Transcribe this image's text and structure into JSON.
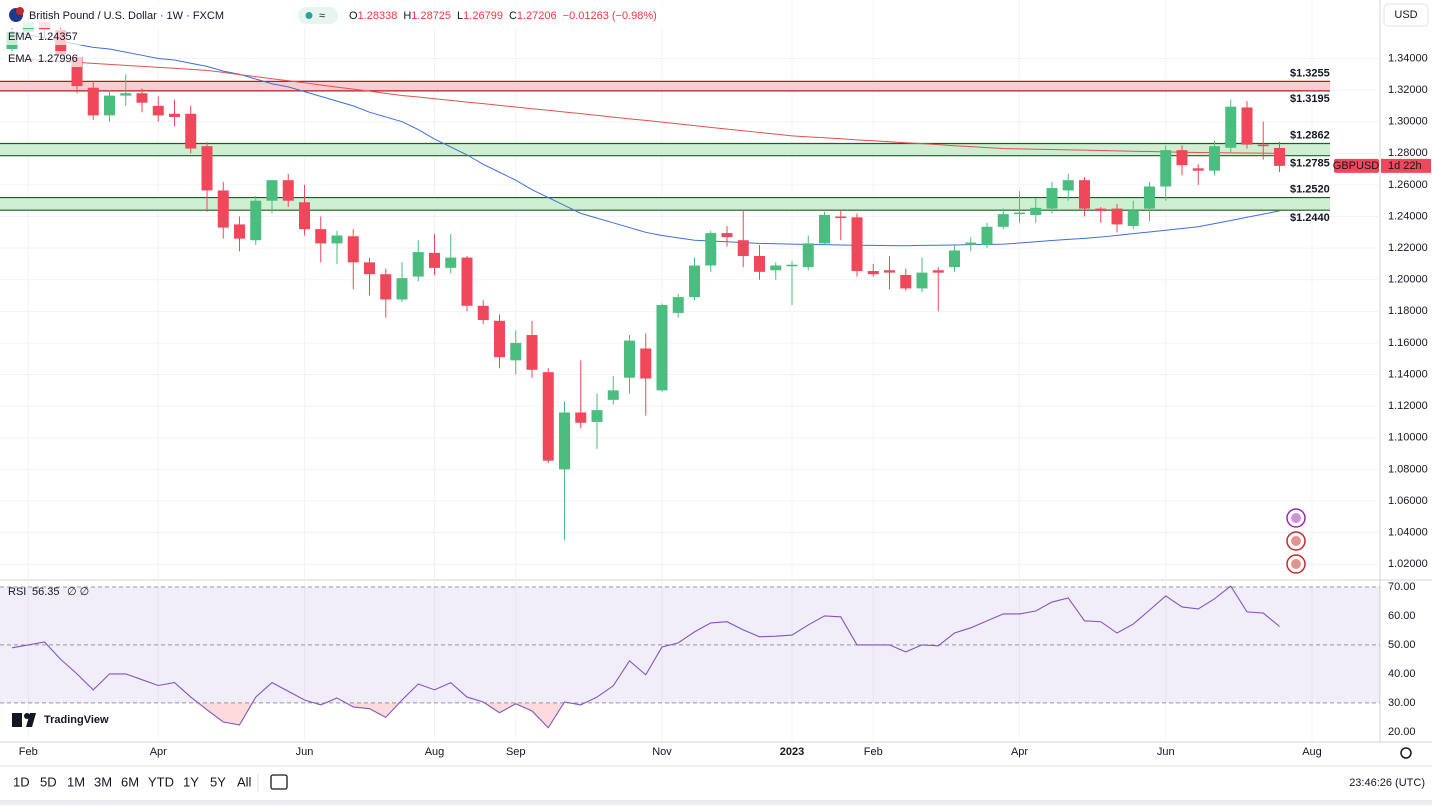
{
  "header": {
    "title": "British Pound / U.S. Dollar · 1W · FXCM",
    "ohlc": [
      [
        "O",
        "1.28338"
      ],
      [
        "H",
        "1.28725"
      ],
      [
        "L",
        "1.26799"
      ],
      [
        "C",
        "1.27206"
      ]
    ],
    "change": "−0.01263 (−0.98%)",
    "currency": "USD"
  },
  "brand": "TradingView",
  "toolbar": {
    "ranges": [
      "1D",
      "5D",
      "1M",
      "3M",
      "6M",
      "YTD",
      "1Y",
      "5Y",
      "All"
    ],
    "clock": "23:46:26 (UTC)"
  },
  "chart_data": [
    {
      "type": "candlestick",
      "symbol": "GBPUSD",
      "countdown": "1d 22h",
      "categories": [
        null,
        "Feb",
        null,
        null,
        null,
        null,
        null,
        null,
        null,
        "Apr",
        null,
        null,
        null,
        null,
        null,
        null,
        null,
        null,
        "Jun",
        null,
        null,
        null,
        null,
        null,
        null,
        null,
        "Aug",
        null,
        null,
        null,
        null,
        "Sep",
        null,
        null,
        null,
        null,
        null,
        null,
        null,
        null,
        "Nov",
        null,
        null,
        null,
        null,
        null,
        null,
        null,
        "2023",
        null,
        null,
        null,
        null,
        "Feb",
        null,
        null,
        null,
        null,
        null,
        null,
        null,
        null,
        "Apr",
        null,
        null,
        null,
        null,
        null,
        null,
        null,
        null,
        "Jun",
        null,
        null,
        null,
        null,
        null,
        null,
        null,
        null,
        "Aug"
      ],
      "open": [
        1.346,
        1.357,
        1.363,
        1.358,
        1.341,
        1.3215,
        1.304,
        1.3165,
        1.318,
        1.31,
        1.305,
        1.305,
        1.2845,
        1.2565,
        1.235,
        1.225,
        1.25,
        1.263,
        1.249,
        1.232,
        1.223,
        1.2275,
        1.211,
        1.2035,
        1.1875,
        1.202,
        1.217,
        1.2075,
        1.214,
        1.1835,
        1.174,
        1.149,
        1.165,
        1.1415,
        1.08,
        1.116,
        1.11,
        1.124,
        1.138,
        1.1565,
        1.13,
        1.179,
        1.189,
        1.209,
        1.2295,
        1.225,
        1.215,
        1.206,
        1.2085,
        1.208,
        1.223,
        1.24,
        1.2395,
        1.2055,
        1.206,
        1.203,
        1.1945,
        1.206,
        1.208,
        1.222,
        1.222,
        1.2335,
        1.2415,
        1.241,
        1.245,
        1.2565,
        1.263,
        1.245,
        1.245,
        1.234,
        1.245,
        1.259,
        1.282,
        1.2705,
        1.269,
        1.2835,
        1.309,
        1.2855,
        1.28338,
        null,
        null
      ],
      "high": [
        1.36,
        1.366,
        1.368,
        1.362,
        1.343,
        1.326,
        1.32,
        1.33,
        1.321,
        1.316,
        1.314,
        1.31,
        1.287,
        1.262,
        1.24,
        1.253,
        1.263,
        1.267,
        1.26,
        1.24,
        1.231,
        1.232,
        1.214,
        1.207,
        1.211,
        1.225,
        1.229,
        1.229,
        1.215,
        1.187,
        1.178,
        1.168,
        1.174,
        1.144,
        1.123,
        1.149,
        1.128,
        1.139,
        1.165,
        1.166,
        1.185,
        1.191,
        1.214,
        1.231,
        1.234,
        1.244,
        1.222,
        1.211,
        1.212,
        1.228,
        1.243,
        1.244,
        1.242,
        1.21,
        1.215,
        1.207,
        1.214,
        1.208,
        1.222,
        1.227,
        1.236,
        1.245,
        1.256,
        1.252,
        1.262,
        1.267,
        1.265,
        1.246,
        1.248,
        1.25,
        1.262,
        1.285,
        1.285,
        1.273,
        1.288,
        1.314,
        1.313,
        1.3,
        1.28725,
        null,
        null
      ],
      "low": [
        1.342,
        1.352,
        1.353,
        1.339,
        1.318,
        1.301,
        1.3,
        1.31,
        1.306,
        1.3,
        1.297,
        1.28,
        1.243,
        1.226,
        1.218,
        1.222,
        1.242,
        1.246,
        1.228,
        1.211,
        1.21,
        1.194,
        1.19,
        1.176,
        1.186,
        1.199,
        1.203,
        1.204,
        1.18,
        1.172,
        1.144,
        1.14,
        1.138,
        1.084,
        1.035,
        1.106,
        1.093,
        1.121,
        1.128,
        1.114,
        1.129,
        1.176,
        1.187,
        1.205,
        1.221,
        1.208,
        1.2,
        1.2,
        1.184,
        1.206,
        1.222,
        1.225,
        1.202,
        1.202,
        1.194,
        1.193,
        1.192,
        1.18,
        1.205,
        1.218,
        1.22,
        1.232,
        1.236,
        1.236,
        1.242,
        1.25,
        1.24,
        1.236,
        1.23,
        1.232,
        1.237,
        1.25,
        1.266,
        1.26,
        1.266,
        1.28,
        1.283,
        1.276,
        1.26799,
        null,
        null
      ],
      "close": [
        1.357,
        1.363,
        1.358,
        1.342,
        1.3225,
        1.304,
        1.3165,
        1.318,
        1.312,
        1.304,
        1.303,
        1.283,
        1.2565,
        1.233,
        1.226,
        1.25,
        1.263,
        1.25,
        1.232,
        1.223,
        1.228,
        1.211,
        1.2035,
        1.1875,
        1.201,
        1.2175,
        1.2075,
        1.214,
        1.1835,
        1.1745,
        1.151,
        1.16,
        1.143,
        1.0855,
        1.116,
        1.1095,
        1.1175,
        1.13,
        1.1615,
        1.1375,
        1.184,
        1.189,
        1.209,
        1.2295,
        1.227,
        1.215,
        1.205,
        1.209,
        1.2095,
        1.223,
        1.241,
        1.239,
        1.2055,
        1.2035,
        1.2045,
        1.1945,
        1.2045,
        1.2045,
        1.2185,
        1.2235,
        1.2335,
        1.2415,
        1.2425,
        1.2455,
        1.258,
        1.263,
        1.245,
        1.2435,
        1.235,
        1.244,
        1.259,
        1.282,
        1.2725,
        1.269,
        1.2845,
        1.3095,
        1.2855,
        1.2845,
        1.27206,
        null,
        null
      ],
      "up_color": "#4bbd7e",
      "down_color": "#f0475a",
      "series": [
        {
          "name": "EMA",
          "color": "#3f6fd8",
          "values": [
            1.357,
            1.355,
            1.353,
            1.351,
            1.349,
            1.347,
            1.346,
            1.344,
            1.342,
            1.34,
            1.339,
            1.337,
            1.335,
            1.332,
            1.33,
            1.327,
            1.324,
            1.322,
            1.319,
            1.316,
            1.313,
            1.31,
            1.306,
            1.303,
            1.3,
            1.295,
            1.289,
            1.284,
            1.279,
            1.273,
            1.268,
            1.263,
            1.257,
            1.252,
            1.247,
            1.242,
            1.239,
            1.236,
            1.233,
            1.23,
            1.228,
            1.2265,
            1.225,
            1.2245,
            1.224,
            1.2235,
            1.223,
            1.2228,
            1.2225,
            1.2223,
            1.2222,
            1.222,
            1.2218,
            1.2217,
            1.2216,
            1.2215,
            1.2217,
            1.2218,
            1.222,
            1.2222,
            1.2223,
            1.2225,
            1.2232,
            1.224,
            1.2248,
            1.2255,
            1.2262,
            1.227,
            1.2281,
            1.2292,
            1.2302,
            1.2313,
            1.2324,
            1.2335,
            1.2355,
            1.2375,
            1.2395,
            1.2415,
            1.24357,
            null,
            null
          ]
        },
        {
          "name": "EMA",
          "color": "#e0524f",
          "values": [
            1.34,
            1.3394,
            1.3388,
            1.3381,
            1.3375,
            1.3369,
            1.3363,
            1.3356,
            1.335,
            1.3344,
            1.3338,
            1.3331,
            1.3325,
            1.3312,
            1.3298,
            1.3285,
            1.3272,
            1.3259,
            1.3246,
            1.3232,
            1.3219,
            1.3206,
            1.3193,
            1.3179,
            1.3166,
            1.3156,
            1.3145,
            1.3135,
            1.3124,
            1.3114,
            1.3103,
            1.3093,
            1.3082,
            1.3072,
            1.3061,
            1.3051,
            1.304,
            1.3029,
            1.3018,
            1.3008,
            1.2997,
            1.2986,
            1.2975,
            1.2964,
            1.2953,
            1.2943,
            1.2932,
            1.2921,
            1.291,
            1.2904,
            1.2898,
            1.2892,
            1.2885,
            1.2879,
            1.2873,
            1.2867,
            1.2861,
            1.2855,
            1.2848,
            1.2842,
            1.2836,
            1.283,
            1.2828,
            1.2826,
            1.2824,
            1.2822,
            1.282,
            1.2818,
            1.2815,
            1.2813,
            1.2811,
            1.2809,
            1.2807,
            1.2805,
            1.2804,
            1.2803,
            1.2802,
            1.2801,
            1.27996,
            null,
            null
          ]
        }
      ],
      "zones": [
        {
          "low": 1.3195,
          "high": 1.3255,
          "low_label": "$1.3195",
          "high_label": "$1.3255",
          "color": "#f7c5ca",
          "border": "#b71c1c"
        },
        {
          "low": 1.2785,
          "high": 1.2862,
          "low_label": "$1.2785",
          "high_label": "$1.2862",
          "color": "#c6ecc9",
          "border": "#1b5e20"
        },
        {
          "low": 1.244,
          "high": 1.252,
          "low_label": "$1.2440",
          "high_label": "$1.2520",
          "color": "#c6ecc9",
          "border": "#1b5e20"
        }
      ],
      "ylim": [
        1.01,
        1.377
      ],
      "yticks": [
        {
          "value": 1.34,
          "label": "1.34000"
        },
        {
          "value": 1.32,
          "label": "1.32000"
        },
        {
          "value": 1.3,
          "label": "1.30000"
        },
        {
          "value": 1.28,
          "label": "1.28000"
        },
        {
          "value": 1.26,
          "label": "1.26000"
        },
        {
          "value": 1.24,
          "label": "1.24000"
        },
        {
          "value": 1.22,
          "label": "1.22000"
        },
        {
          "value": 1.2,
          "label": "1.20000"
        },
        {
          "value": 1.18,
          "label": "1.18000"
        },
        {
          "value": 1.16,
          "label": "1.16000"
        },
        {
          "value": 1.14,
          "label": "1.14000"
        },
        {
          "value": 1.12,
          "label": "1.12000"
        },
        {
          "value": 1.1,
          "label": "1.10000"
        },
        {
          "value": 1.08,
          "label": "1.08000"
        },
        {
          "value": 1.06,
          "label": "1.06000"
        },
        {
          "value": 1.04,
          "label": "1.04000"
        },
        {
          "value": 1.02,
          "label": "1.02000"
        }
      ],
      "grid": true
    },
    {
      "type": "line",
      "title": "RSI",
      "extra": "∅ ∅",
      "color": "#7e57c2",
      "values": [
        49,
        50,
        51,
        45,
        40,
        34.5,
        40,
        40,
        38,
        36,
        37,
        32,
        27.6,
        23.4,
        22.4,
        32,
        37,
        34,
        31,
        29.3,
        31.7,
        28.6,
        28,
        25,
        31,
        36.5,
        34.5,
        37,
        32,
        30.3,
        26.6,
        29.7,
        27.2,
        21.4,
        30.3,
        29.3,
        32,
        35.9,
        44.5,
        39.7,
        49.3,
        50.7,
        54.5,
        57.6,
        58,
        55.2,
        52.8,
        53,
        53.4,
        56.9,
        60,
        59.7,
        50,
        50,
        50,
        47.6,
        50,
        49.7,
        54.1,
        55.9,
        58.3,
        60.7,
        60.7,
        61.7,
        64.8,
        66.2,
        58.3,
        58,
        54.1,
        57.2,
        62,
        66.9,
        63.1,
        62.4,
        65.9,
        70.3,
        61.4,
        61,
        56.35,
        null,
        null
      ],
      "levels": [
        70,
        50,
        30
      ],
      "band": [
        30,
        70
      ],
      "ylim": [
        16.5,
        72.4
      ],
      "yticks": [
        {
          "value": 70,
          "label": "70.00"
        },
        {
          "value": 60,
          "label": "60.00"
        },
        {
          "value": 50,
          "label": "50.00"
        },
        {
          "value": 40,
          "label": "40.00"
        },
        {
          "value": 30,
          "label": "30.00"
        },
        {
          "value": 20,
          "label": "20.00"
        }
      ]
    }
  ]
}
